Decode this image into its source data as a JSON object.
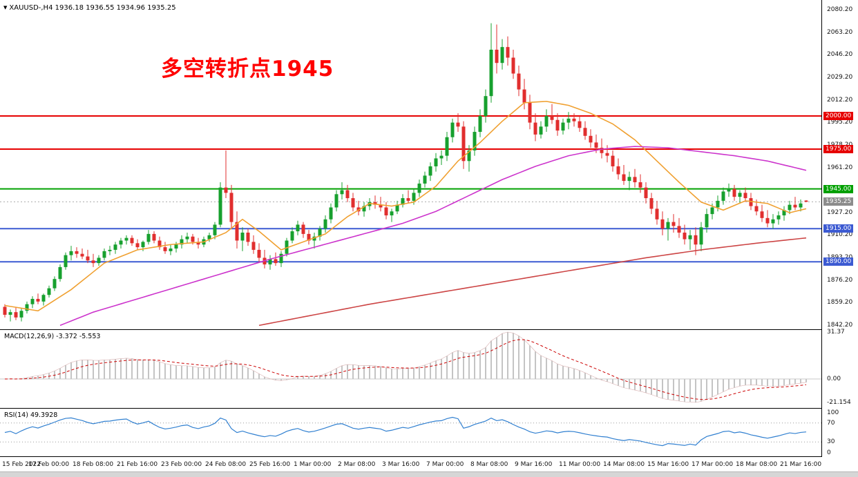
{
  "header": {
    "symbol_ohlc": "XAUUSD-,H4 1936.18 1936.55 1934.96 1935.25"
  },
  "chart_data": {
    "type": "candlestick",
    "symbol": "XAUUSD-",
    "timeframe": "H4",
    "title": "XAUUSD-,H4 1936.18 1936.55 1934.96 1935.25",
    "current_ohlc": {
      "open": 1936.18,
      "high": 1936.55,
      "low": 1934.96,
      "close": 1935.25
    },
    "current_price": 1935.25,
    "annotation": "多空转折点1945",
    "annotation_color": "#ff0000",
    "y_axis": {
      "min": 1842.2,
      "max": 2080.2,
      "tick_step": 17.0,
      "labels": [
        "2080.20",
        "2063.20",
        "2046.20",
        "2029.20",
        "2012.20",
        "1995.20",
        "1978.20",
        "1961.20",
        "1944.20",
        "1927.20",
        "1910.20",
        "1893.20",
        "1876.20",
        "1859.20",
        "1842.20"
      ]
    },
    "x_axis": {
      "candles_per_tick": 8,
      "labels": [
        "15 Feb 2022",
        "17 Feb 00:00",
        "18 Feb 08:00",
        "21 Feb 16:00",
        "23 Feb 00:00",
        "24 Feb 08:00",
        "25 Feb 16:00",
        "1 Mar 00:00",
        "2 Mar 08:00",
        "3 Mar 16:00",
        "7 Mar 00:00",
        "8 Mar 08:00",
        "9 Mar 16:00",
        "11 Mar 00:00",
        "14 Mar 08:00",
        "15 Mar 16:00",
        "17 Mar 00:00",
        "18 Mar 08:00",
        "21 Mar 16:00"
      ]
    },
    "colors": {
      "bull": "#17a02e",
      "bear": "#e12e2e",
      "current_price_line": "#aaaaaa",
      "current_price_badge": "#8c8c8c"
    },
    "hlines": [
      {
        "price": 2000.0,
        "label": "2000.00",
        "color": "#e60000"
      },
      {
        "price": 1975.0,
        "label": "1975.00",
        "color": "#e60000"
      },
      {
        "price": 1945.0,
        "label": "1945.00",
        "color": "#00a000"
      },
      {
        "price": 1915.0,
        "label": "1915.00",
        "color": "#3c5ad2"
      },
      {
        "price": 1890.0,
        "label": "1890.00",
        "color": "#3c5ad2"
      }
    ],
    "moving_averages": [
      {
        "name": "fast-ma",
        "color": "#f0a030",
        "anchors": [
          [
            0,
            1857
          ],
          [
            6,
            1853
          ],
          [
            12,
            1869
          ],
          [
            18,
            1889
          ],
          [
            24,
            1899
          ],
          [
            30,
            1903
          ],
          [
            36,
            1905
          ],
          [
            40,
            1912
          ],
          [
            43,
            1922
          ],
          [
            46,
            1913
          ],
          [
            50,
            1899
          ],
          [
            54,
            1905
          ],
          [
            58,
            1911
          ],
          [
            62,
            1924
          ],
          [
            66,
            1934
          ],
          [
            70,
            1932
          ],
          [
            74,
            1935
          ],
          [
            78,
            1947
          ],
          [
            82,
            1966
          ],
          [
            86,
            1980
          ],
          [
            90,
            1996
          ],
          [
            94,
            2010
          ],
          [
            98,
            2011
          ],
          [
            102,
            2008
          ],
          [
            106,
            2002
          ],
          [
            110,
            1994
          ],
          [
            114,
            1982
          ],
          [
            118,
            1966
          ],
          [
            122,
            1950
          ],
          [
            126,
            1935
          ],
          [
            130,
            1929
          ],
          [
            134,
            1936
          ],
          [
            138,
            1934
          ],
          [
            142,
            1927
          ],
          [
            145,
            1930
          ]
        ]
      },
      {
        "name": "mid-ma",
        "color": "#cc33cc",
        "anchors": [
          [
            10,
            1842
          ],
          [
            16,
            1852
          ],
          [
            24,
            1862
          ],
          [
            32,
            1872
          ],
          [
            40,
            1882
          ],
          [
            48,
            1892
          ],
          [
            56,
            1901
          ],
          [
            64,
            1910
          ],
          [
            72,
            1919
          ],
          [
            78,
            1928
          ],
          [
            84,
            1940
          ],
          [
            90,
            1952
          ],
          [
            96,
            1962
          ],
          [
            102,
            1970
          ],
          [
            108,
            1975
          ],
          [
            114,
            1977
          ],
          [
            120,
            1976
          ],
          [
            126,
            1973
          ],
          [
            132,
            1970
          ],
          [
            138,
            1966
          ],
          [
            142,
            1962
          ],
          [
            145,
            1959
          ]
        ]
      },
      {
        "name": "slow-ma",
        "color": "#cc4444",
        "anchors": [
          [
            46,
            1842
          ],
          [
            56,
            1850
          ],
          [
            66,
            1858
          ],
          [
            76,
            1865
          ],
          [
            86,
            1872
          ],
          [
            96,
            1879
          ],
          [
            106,
            1886
          ],
          [
            116,
            1893
          ],
          [
            126,
            1899
          ],
          [
            136,
            1904
          ],
          [
            145,
            1908
          ]
        ]
      }
    ],
    "candles": [
      [
        1856,
        1858,
        1848,
        1850
      ],
      [
        1850,
        1854,
        1845,
        1852
      ],
      [
        1852,
        1856,
        1846,
        1848
      ],
      [
        1848,
        1855,
        1845,
        1853
      ],
      [
        1853,
        1860,
        1851,
        1858
      ],
      [
        1858,
        1864,
        1855,
        1862
      ],
      [
        1862,
        1866,
        1858,
        1860
      ],
      [
        1860,
        1866,
        1857,
        1865
      ],
      [
        1865,
        1872,
        1863,
        1870
      ],
      [
        1870,
        1879,
        1868,
        1877
      ],
      [
        1877,
        1888,
        1875,
        1886
      ],
      [
        1886,
        1897,
        1884,
        1895
      ],
      [
        1895,
        1902,
        1891,
        1898
      ],
      [
        1898,
        1901,
        1893,
        1896
      ],
      [
        1896,
        1900,
        1892,
        1894
      ],
      [
        1894,
        1899,
        1889,
        1891
      ],
      [
        1891,
        1896,
        1886,
        1889
      ],
      [
        1889,
        1895,
        1887,
        1893
      ],
      [
        1893,
        1900,
        1891,
        1898
      ],
      [
        1898,
        1902,
        1895,
        1899
      ],
      [
        1899,
        1905,
        1896,
        1903
      ],
      [
        1903,
        1908,
        1900,
        1906
      ],
      [
        1906,
        1910,
        1903,
        1908
      ],
      [
        1908,
        1910,
        1902,
        1904
      ],
      [
        1904,
        1907,
        1899,
        1901
      ],
      [
        1901,
        1906,
        1898,
        1905
      ],
      [
        1905,
        1914,
        1903,
        1911
      ],
      [
        1911,
        1913,
        1904,
        1906
      ],
      [
        1906,
        1909,
        1899,
        1901
      ],
      [
        1901,
        1905,
        1896,
        1898
      ],
      [
        1898,
        1903,
        1895,
        1900
      ],
      [
        1900,
        1905,
        1897,
        1903
      ],
      [
        1903,
        1910,
        1900,
        1907
      ],
      [
        1907,
        1912,
        1904,
        1909
      ],
      [
        1909,
        1911,
        1903,
        1905
      ],
      [
        1905,
        1908,
        1900,
        1903
      ],
      [
        1903,
        1909,
        1901,
        1907
      ],
      [
        1907,
        1912,
        1905,
        1910
      ],
      [
        1910,
        1920,
        1907,
        1918
      ],
      [
        1918,
        1950,
        1916,
        1946
      ],
      [
        1946,
        1974,
        1938,
        1942
      ],
      [
        1942,
        1948,
        1915,
        1920
      ],
      [
        1920,
        1928,
        1900,
        1906
      ],
      [
        1906,
        1916,
        1898,
        1912
      ],
      [
        1912,
        1915,
        1902,
        1905
      ],
      [
        1905,
        1910,
        1896,
        1899
      ],
      [
        1899,
        1904,
        1890,
        1893
      ],
      [
        1893,
        1899,
        1885,
        1888
      ],
      [
        1888,
        1895,
        1884,
        1892
      ],
      [
        1892,
        1897,
        1887,
        1889
      ],
      [
        1889,
        1898,
        1886,
        1896
      ],
      [
        1896,
        1908,
        1894,
        1906
      ],
      [
        1906,
        1916,
        1904,
        1913
      ],
      [
        1913,
        1921,
        1910,
        1918
      ],
      [
        1918,
        1920,
        1908,
        1911
      ],
      [
        1911,
        1914,
        1903,
        1906
      ],
      [
        1906,
        1912,
        1900,
        1909
      ],
      [
        1909,
        1917,
        1906,
        1915
      ],
      [
        1915,
        1925,
        1912,
        1922
      ],
      [
        1922,
        1934,
        1919,
        1931
      ],
      [
        1931,
        1944,
        1928,
        1941
      ],
      [
        1941,
        1950,
        1937,
        1944
      ],
      [
        1944,
        1948,
        1935,
        1938
      ],
      [
        1938,
        1942,
        1928,
        1931
      ],
      [
        1931,
        1936,
        1925,
        1928
      ],
      [
        1928,
        1935,
        1924,
        1932
      ],
      [
        1932,
        1938,
        1929,
        1935
      ],
      [
        1935,
        1940,
        1930,
        1933
      ],
      [
        1933,
        1939,
        1928,
        1931
      ],
      [
        1931,
        1935,
        1922,
        1925
      ],
      [
        1925,
        1930,
        1920,
        1928
      ],
      [
        1928,
        1936,
        1926,
        1933
      ],
      [
        1933,
        1941,
        1931,
        1938
      ],
      [
        1938,
        1944,
        1934,
        1936
      ],
      [
        1936,
        1945,
        1933,
        1942
      ],
      [
        1942,
        1952,
        1939,
        1949
      ],
      [
        1949,
        1958,
        1946,
        1955
      ],
      [
        1955,
        1965,
        1951,
        1962
      ],
      [
        1962,
        1972,
        1958,
        1968
      ],
      [
        1968,
        1974,
        1963,
        1970
      ],
      [
        1970,
        1988,
        1966,
        1984
      ],
      [
        1984,
        1998,
        1980,
        1995
      ],
      [
        1995,
        2002,
        1988,
        1992
      ],
      [
        1992,
        1996,
        1960,
        1966
      ],
      [
        1966,
        1978,
        1958,
        1974
      ],
      [
        1974,
        1992,
        1970,
        1988
      ],
      [
        1988,
        2005,
        1984,
        2000
      ],
      [
        2000,
        2020,
        1995,
        2015
      ],
      [
        2015,
        2070,
        2010,
        2050
      ],
      [
        2050,
        2069,
        2032,
        2040
      ],
      [
        2040,
        2058,
        2035,
        2052
      ],
      [
        2052,
        2060,
        2038,
        2044
      ],
      [
        2044,
        2050,
        2028,
        2032
      ],
      [
        2032,
        2038,
        2015,
        2020
      ],
      [
        2020,
        2028,
        2005,
        2010
      ],
      [
        2010,
        2016,
        1990,
        1995
      ],
      [
        1995,
        2002,
        1981,
        1986
      ],
      [
        1986,
        1996,
        1983,
        1992
      ],
      [
        1992,
        2005,
        1988,
        2000
      ],
      [
        2000,
        2009,
        1994,
        1997
      ],
      [
        1997,
        2002,
        1985,
        1989
      ],
      [
        1989,
        1998,
        1986,
        1995
      ],
      [
        1995,
        2003,
        1990,
        1998
      ],
      [
        1998,
        2002,
        1992,
        1996
      ],
      [
        1996,
        2000,
        1988,
        1991
      ],
      [
        1991,
        1996,
        1982,
        1985
      ],
      [
        1985,
        1990,
        1976,
        1980
      ],
      [
        1980,
        1986,
        1972,
        1976
      ],
      [
        1976,
        1983,
        1968,
        1972
      ],
      [
        1972,
        1978,
        1965,
        1970
      ],
      [
        1970,
        1974,
        1958,
        1962
      ],
      [
        1962,
        1968,
        1952,
        1956
      ],
      [
        1956,
        1963,
        1948,
        1951
      ],
      [
        1951,
        1958,
        1944,
        1954
      ],
      [
        1954,
        1960,
        1946,
        1950
      ],
      [
        1950,
        1956,
        1942,
        1946
      ],
      [
        1946,
        1950,
        1934,
        1938
      ],
      [
        1938,
        1942,
        1926,
        1930
      ],
      [
        1930,
        1936,
        1918,
        1922
      ],
      [
        1922,
        1928,
        1910,
        1915
      ],
      [
        1915,
        1923,
        1906,
        1920
      ],
      [
        1920,
        1926,
        1912,
        1917
      ],
      [
        1917,
        1923,
        1908,
        1912
      ],
      [
        1912,
        1918,
        1903,
        1907
      ],
      [
        1907,
        1914,
        1899,
        1910
      ],
      [
        1910,
        1916,
        1895,
        1903
      ],
      [
        1903,
        1920,
        1898,
        1916
      ],
      [
        1916,
        1930,
        1912,
        1926
      ],
      [
        1926,
        1934,
        1922,
        1931
      ],
      [
        1931,
        1940,
        1928,
        1936
      ],
      [
        1936,
        1946,
        1933,
        1943
      ],
      [
        1943,
        1949,
        1939,
        1945
      ],
      [
        1945,
        1948,
        1936,
        1939
      ],
      [
        1939,
        1944,
        1934,
        1942
      ],
      [
        1942,
        1946,
        1935,
        1938
      ],
      [
        1938,
        1942,
        1929,
        1932
      ],
      [
        1932,
        1937,
        1925,
        1928
      ],
      [
        1928,
        1933,
        1920,
        1923
      ],
      [
        1923,
        1929,
        1916,
        1919
      ],
      [
        1919,
        1926,
        1915,
        1922
      ],
      [
        1922,
        1928,
        1918,
        1925
      ],
      [
        1925,
        1932,
        1921,
        1929
      ],
      [
        1929,
        1936,
        1926,
        1933
      ],
      [
        1933,
        1939,
        1929,
        1931
      ],
      [
        1931,
        1937,
        1928,
        1934
      ],
      [
        1936.18,
        1936.55,
        1934.96,
        1935.25
      ]
    ],
    "indicators": {
      "macd": {
        "label": "MACD(12,26,9) -3.372 -5.553",
        "params": [
          12,
          26,
          9
        ],
        "value_macd": -3.372,
        "value_signal": -5.553,
        "axis_labels": [
          "31.37",
          "0.00",
          "-21.154"
        ],
        "histogram_color": "#c4c4c4",
        "signal_color": "#cc0000"
      },
      "rsi": {
        "label": "RSI(14) 49.3928",
        "period": 14,
        "value": 49.3928,
        "axis_labels": [
          "100",
          "70",
          "30",
          "0"
        ],
        "levels": [
          70,
          30
        ],
        "line_color": "#2f7fd0"
      }
    }
  }
}
